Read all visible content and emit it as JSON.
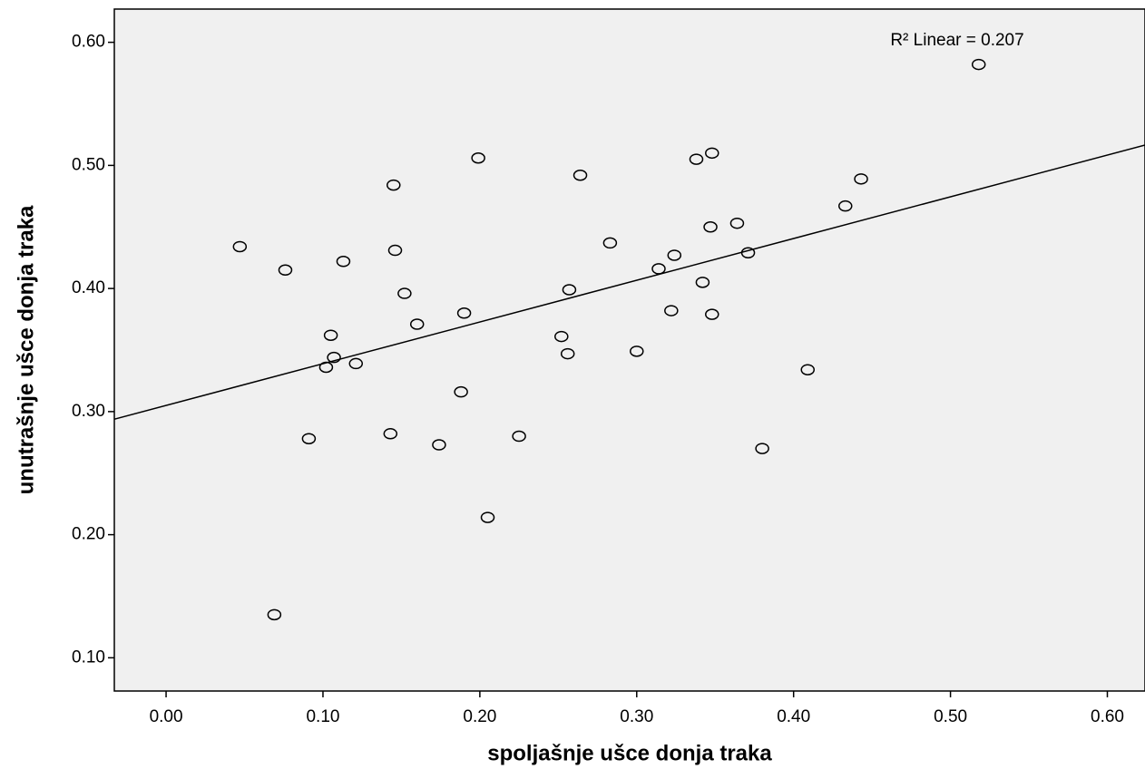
{
  "chart_data": {
    "type": "scatter",
    "x_label": "spoljašnje ušce donja traka",
    "y_label": "unutrašnje ušce donja traka",
    "annotation": "R² Linear = 0.207",
    "x": [
      0.047,
      0.076,
      0.069,
      0.091,
      0.105,
      0.102,
      0.107,
      0.121,
      0.113,
      0.145,
      0.146,
      0.152,
      0.16,
      0.143,
      0.174,
      0.19,
      0.188,
      0.199,
      0.205,
      0.225,
      0.252,
      0.256,
      0.257,
      0.264,
      0.283,
      0.3,
      0.314,
      0.324,
      0.322,
      0.338,
      0.348,
      0.347,
      0.342,
      0.348,
      0.364,
      0.371,
      0.38,
      0.409,
      0.433,
      0.443,
      0.518
    ],
    "values": [
      0.434,
      0.415,
      0.135,
      0.278,
      0.362,
      0.336,
      0.344,
      0.339,
      0.422,
      0.484,
      0.431,
      0.396,
      0.371,
      0.282,
      0.273,
      0.38,
      0.316,
      0.506,
      0.214,
      0.28,
      0.361,
      0.347,
      0.399,
      0.492,
      0.437,
      0.349,
      0.416,
      0.427,
      0.382,
      0.505,
      0.51,
      0.45,
      0.405,
      0.379,
      0.453,
      0.429,
      0.27,
      0.334,
      0.467,
      0.489,
      0.582
    ],
    "color": "#000000",
    "fit_line": {
      "intercept": 0.305,
      "slope": 0.339
    },
    "xlim": [
      -0.033,
      0.624
    ],
    "ylim": [
      0.073,
      0.627
    ],
    "xticks": [
      {
        "value": 0,
        "label": "0.00"
      },
      {
        "value": 0.1,
        "label": "0.10"
      },
      {
        "value": 0.2,
        "label": "0.20"
      },
      {
        "value": 0.3,
        "label": "0.30"
      },
      {
        "value": 0.4,
        "label": "0.40"
      },
      {
        "value": 0.5,
        "label": "0.50"
      },
      {
        "value": 0.6,
        "label": "0.60"
      }
    ],
    "yticks": [
      {
        "value": 0.1,
        "label": "0.10"
      },
      {
        "value": 0.2,
        "label": "0.20"
      },
      {
        "value": 0.3,
        "label": "0.30"
      },
      {
        "value": 0.4,
        "label": "0.40"
      },
      {
        "value": 0.5,
        "label": "0.50"
      },
      {
        "value": 0.6,
        "label": "0.60"
      }
    ]
  }
}
